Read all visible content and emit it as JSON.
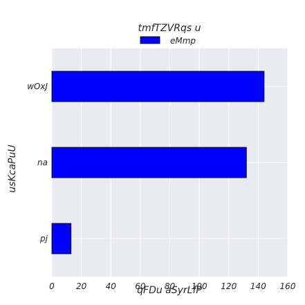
{
  "chart_data": {
    "type": "bar",
    "orientation": "horizontal",
    "legend_title": "tmfTZVRqs u",
    "xlabel": "qFDu  aSyrLfP",
    "ylabel": "usKcaPuU",
    "categories": [
      "pj",
      "na",
      "wOxJ"
    ],
    "series": [
      {
        "name": "eMmp",
        "values": [
          13,
          132,
          144
        ],
        "color": "#0000ff"
      }
    ],
    "xlim": [
      0,
      160
    ],
    "xticks": [
      0,
      20,
      40,
      60,
      80,
      100,
      120,
      140,
      160
    ],
    "grid": true,
    "legend_position": "top-center",
    "background": "#eaeaf2"
  }
}
